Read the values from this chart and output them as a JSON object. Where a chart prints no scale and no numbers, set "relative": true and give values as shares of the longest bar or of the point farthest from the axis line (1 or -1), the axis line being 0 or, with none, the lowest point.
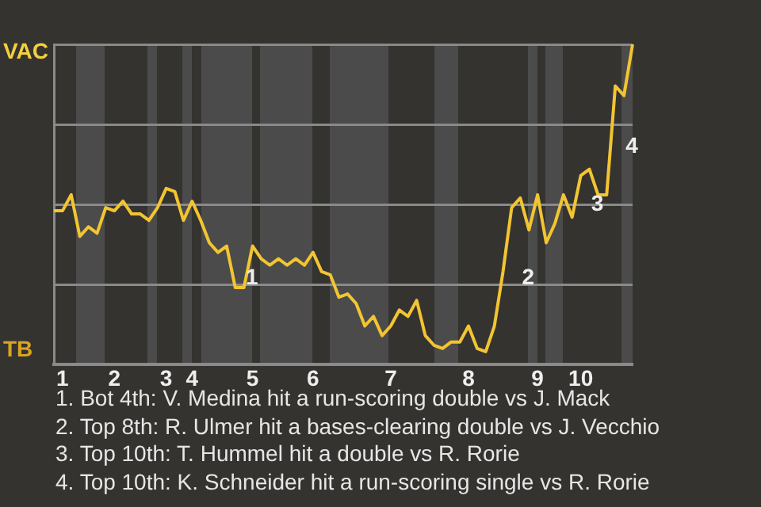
{
  "chart_data": {
    "type": "line",
    "relative": true,
    "categories": [
      null,
      "1",
      null,
      null,
      null,
      null,
      null,
      "2",
      null,
      null,
      null,
      null,
      null,
      "3",
      null,
      null,
      "4",
      null,
      null,
      null,
      null,
      null,
      null,
      "5",
      null,
      null,
      null,
      null,
      null,
      null,
      "6",
      null,
      null,
      null,
      null,
      null,
      null,
      null,
      null,
      "7",
      null,
      null,
      null,
      null,
      null,
      null,
      null,
      null,
      "8",
      null,
      null,
      null,
      null,
      null,
      null,
      null,
      "9",
      null,
      null,
      null,
      null,
      "10",
      null,
      null,
      null,
      null,
      null,
      null
    ],
    "series": [
      {
        "color": "#f2c531",
        "values": [
          0.48,
          0.48,
          0.53,
          0.4,
          0.43,
          0.41,
          0.49,
          0.48,
          0.51,
          0.47,
          0.47,
          0.45,
          0.49,
          0.55,
          0.54,
          0.45,
          0.51,
          0.45,
          0.38,
          0.35,
          0.37,
          0.24,
          0.24,
          0.37,
          0.33,
          0.31,
          0.33,
          0.31,
          0.33,
          0.31,
          0.35,
          0.29,
          0.28,
          0.21,
          0.22,
          0.19,
          0.12,
          0.15,
          0.09,
          0.12,
          0.17,
          0.15,
          0.2,
          0.09,
          0.06,
          0.05,
          0.07,
          0.07,
          0.12,
          0.05,
          0.04,
          0.12,
          0.29,
          0.49,
          0.52,
          0.42,
          0.53,
          0.38,
          0.44,
          0.53,
          0.46,
          0.59,
          0.61,
          0.53,
          0.53,
          0.87,
          0.84,
          1
        ]
      }
    ],
    "grid": "y",
    "legend": false,
    "marker": "none",
    "line_style": "solid",
    "annotations": [
      "VAC",
      "TB",
      "1",
      "2",
      "3",
      "4",
      "1. Bot 4th: V. Medina hit a run-scoring double vs J. Mack",
      "2. Top 8th: R. Ulmer hit a bases-clearing double vs J. Vecchio",
      "3. Top 10th: T. Hummel hit a double vs R. Rorie",
      "4. Top 10th: K. Schneider hit a run-scoring single vs R. Rorie"
    ]
  }
}
